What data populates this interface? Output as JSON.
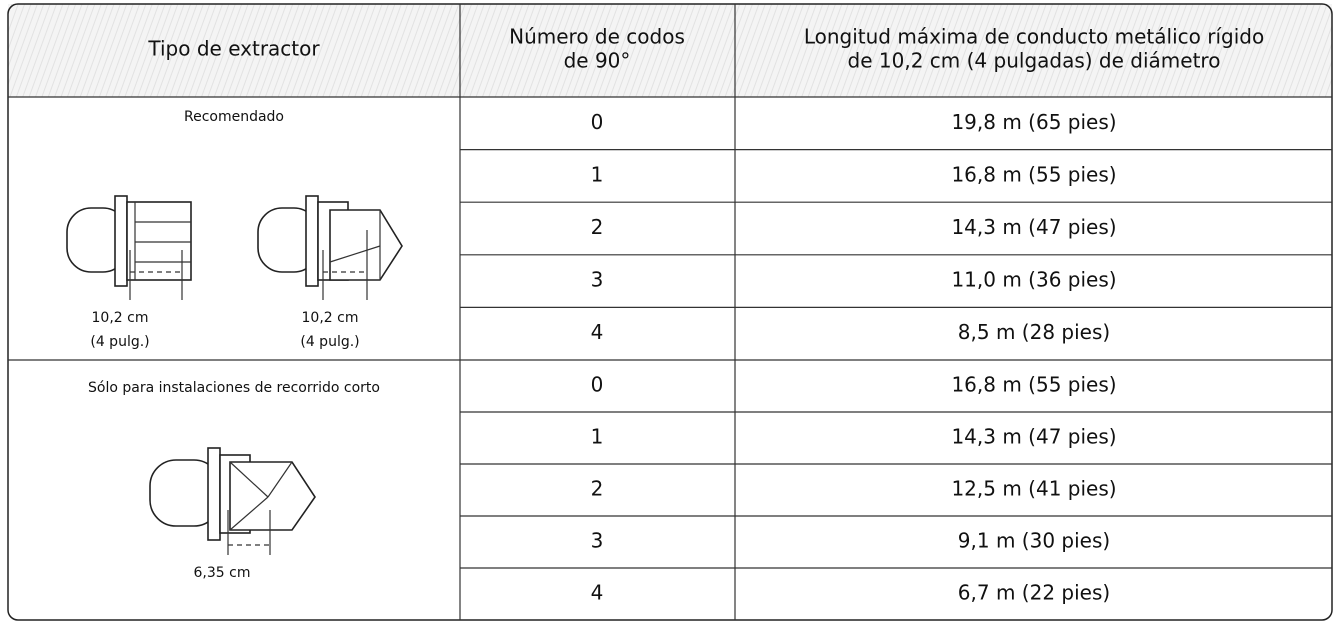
{
  "header": {
    "columns": [
      {
        "lines": [
          "Tipo de extractor"
        ]
      },
      {
        "lines": [
          "Número de codos",
          "de 90°"
        ]
      },
      {
        "lines": [
          "Longitud máxima de conducto metálico rígido",
          "de 10,2 cm (4 pulgadas) de diámetro"
        ]
      }
    ]
  },
  "groups": [
    {
      "label": "Recomendado",
      "dimensions": [
        {
          "size": "10,2 cm",
          "inches": "(4 pulg.)"
        },
        {
          "size": "10,2 cm",
          "inches": "(4 pulg.)"
        }
      ],
      "rows": [
        {
          "elbows": 0,
          "length": "19,8 m (65 pies)"
        },
        {
          "elbows": 1,
          "length": "16,8 m (55 pies)"
        },
        {
          "elbows": 2,
          "length": "14,3 m (47 pies)"
        },
        {
          "elbows": 3,
          "length": "11,0 m (36 pies)"
        },
        {
          "elbows": 4,
          "length": "8,5 m (28 pies)"
        }
      ]
    },
    {
      "label": "Sólo para instalaciones de recorrido corto",
      "dimensions": [
        {
          "size": "6,35 cm"
        }
      ],
      "rows": [
        {
          "elbows": 0,
          "length": "16,8 m (55 pies)"
        },
        {
          "elbows": 1,
          "length": "14,3 m (47 pies)"
        },
        {
          "elbows": 2,
          "length": "12,5 m (41 pies)"
        },
        {
          "elbows": 3,
          "length": "9,1 m (30 pies)"
        },
        {
          "elbows": 4,
          "length": "6,7 m (22 pies)"
        }
      ]
    }
  ]
}
